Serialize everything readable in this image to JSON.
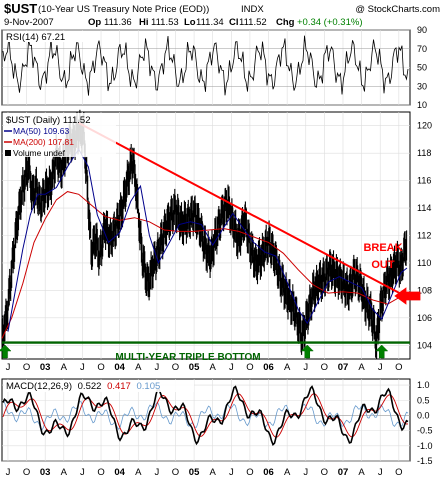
{
  "header": {
    "symbol": "$UST",
    "name": "(10-Year US Treasury Note Price (EOD))",
    "exchange": "INDX",
    "watermark": "@ StockCharts.com",
    "date": "9-Nov-2007",
    "op_label": "Op",
    "op": "111.36",
    "hi_label": "Hi",
    "hi": "111.53",
    "lo_label": "Lo",
    "lo": "111.34",
    "cl_label": "Cl",
    "cl": "111.52",
    "chg_label": "Chg",
    "chg": "+0.34 (+0.31%)",
    "chg_color": "#008000"
  },
  "chart_data": [
    {
      "type": "line",
      "panel": "rsi",
      "label": "RSI(14) 67.21",
      "ylim": [
        10,
        90
      ],
      "yticks": [
        10,
        30,
        50,
        70,
        90
      ],
      "reference_lines": [
        30,
        70
      ],
      "color": "#000000"
    },
    {
      "type": "line",
      "panel": "price",
      "title": "$UST (Daily) 111.52",
      "ylim": [
        103,
        121
      ],
      "yticks": [
        104,
        106,
        108,
        110,
        112,
        114,
        116,
        118,
        120
      ],
      "x_tick_labels": [
        "J",
        "O",
        "03",
        "A",
        "J",
        "O",
        "04",
        "A",
        "J",
        "O",
        "05",
        "A",
        "J",
        "O",
        "06",
        "A",
        "J",
        "O",
        "07",
        "A",
        "J",
        "O"
      ],
      "series": [
        {
          "name": "MA(50) 109.63",
          "color": "#00008b"
        },
        {
          "name": "MA(200) 107.81",
          "color": "#cc0000"
        },
        {
          "name": "Volume undef",
          "color": "#000000"
        }
      ],
      "price_points": [
        [
          2002.42,
          104.3
        ],
        [
          2002.5,
          106.8
        ],
        [
          2002.55,
          109.5
        ],
        [
          2002.62,
          112.8
        ],
        [
          2002.67,
          114.6
        ],
        [
          2002.72,
          115.9
        ],
        [
          2002.78,
          117.1
        ],
        [
          2002.83,
          114.8
        ],
        [
          2002.88,
          115.6
        ],
        [
          2002.93,
          114.2
        ],
        [
          2003.0,
          115.2
        ],
        [
          2003.08,
          115.7
        ],
        [
          2003.15,
          117.8
        ],
        [
          2003.22,
          116.8
        ],
        [
          2003.3,
          118.6
        ],
        [
          2003.38,
          118.9
        ],
        [
          2003.45,
          119.6
        ],
        [
          2003.52,
          119.4
        ],
        [
          2003.58,
          114.2
        ],
        [
          2003.62,
          110.8
        ],
        [
          2003.68,
          111.8
        ],
        [
          2003.73,
          110.4
        ],
        [
          2003.8,
          112.7
        ],
        [
          2003.88,
          111.6
        ],
        [
          2003.95,
          112.6
        ],
        [
          2004.03,
          113.9
        ],
        [
          2004.12,
          116.4
        ],
        [
          2004.18,
          117.6
        ],
        [
          2004.24,
          114.4
        ],
        [
          2004.3,
          110.6
        ],
        [
          2004.38,
          108.4
        ],
        [
          2004.45,
          109.8
        ],
        [
          2004.52,
          110.8
        ],
        [
          2004.6,
          112.3
        ],
        [
          2004.68,
          113.3
        ],
        [
          2004.75,
          113.9
        ],
        [
          2004.83,
          112.8
        ],
        [
          2004.92,
          113.1
        ],
        [
          2005.0,
          113.6
        ],
        [
          2005.08,
          112.6
        ],
        [
          2005.15,
          111.1
        ],
        [
          2005.22,
          110.4
        ],
        [
          2005.3,
          112.1
        ],
        [
          2005.38,
          113.6
        ],
        [
          2005.45,
          114.4
        ],
        [
          2005.52,
          112.9
        ],
        [
          2005.6,
          111.6
        ],
        [
          2005.68,
          113.2
        ],
        [
          2005.75,
          111.3
        ],
        [
          2005.83,
          109.9
        ],
        [
          2005.92,
          110.6
        ],
        [
          2006.0,
          111.6
        ],
        [
          2006.08,
          110.5
        ],
        [
          2006.15,
          109.0
        ],
        [
          2006.25,
          107.6
        ],
        [
          2006.35,
          106.6
        ],
        [
          2006.45,
          104.6
        ],
        [
          2006.52,
          106.1
        ],
        [
          2006.6,
          107.9
        ],
        [
          2006.68,
          108.6
        ],
        [
          2006.75,
          108.9
        ],
        [
          2006.83,
          109.6
        ],
        [
          2006.92,
          109.0
        ],
        [
          2007.0,
          108.6
        ],
        [
          2007.08,
          107.9
        ],
        [
          2007.15,
          109.2
        ],
        [
          2007.22,
          108.6
        ],
        [
          2007.3,
          107.1
        ],
        [
          2007.38,
          106.4
        ],
        [
          2007.45,
          104.3
        ],
        [
          2007.5,
          106.6
        ],
        [
          2007.58,
          108.6
        ],
        [
          2007.65,
          109.1
        ],
        [
          2007.72,
          110.1
        ],
        [
          2007.78,
          109.6
        ],
        [
          2007.82,
          110.7
        ],
        [
          2007.86,
          111.52
        ]
      ],
      "ma50_points": [
        [
          2002.5,
          105.0
        ],
        [
          2002.6,
          108.0
        ],
        [
          2002.7,
          111.0
        ],
        [
          2002.8,
          113.5
        ],
        [
          2002.9,
          115.0
        ],
        [
          2003.0,
          115.0
        ],
        [
          2003.15,
          115.5
        ],
        [
          2003.3,
          117.0
        ],
        [
          2003.45,
          118.3
        ],
        [
          2003.58,
          117.0
        ],
        [
          2003.7,
          113.5
        ],
        [
          2003.85,
          111.5
        ],
        [
          2004.0,
          112.2
        ],
        [
          2004.15,
          114.5
        ],
        [
          2004.28,
          115.6
        ],
        [
          2004.4,
          112.0
        ],
        [
          2004.52,
          110.0
        ],
        [
          2004.65,
          111.3
        ],
        [
          2004.8,
          112.8
        ],
        [
          2004.95,
          113.0
        ],
        [
          2005.1,
          112.8
        ],
        [
          2005.25,
          111.3
        ],
        [
          2005.4,
          112.6
        ],
        [
          2005.52,
          113.6
        ],
        [
          2005.65,
          112.6
        ],
        [
          2005.8,
          111.5
        ],
        [
          2005.95,
          110.8
        ],
        [
          2006.1,
          110.5
        ],
        [
          2006.25,
          108.6
        ],
        [
          2006.4,
          106.6
        ],
        [
          2006.52,
          105.6
        ],
        [
          2006.65,
          107.0
        ],
        [
          2006.8,
          108.6
        ],
        [
          2006.95,
          109.0
        ],
        [
          2007.1,
          108.6
        ],
        [
          2007.25,
          108.2
        ],
        [
          2007.4,
          106.6
        ],
        [
          2007.52,
          105.9
        ],
        [
          2007.65,
          107.6
        ],
        [
          2007.78,
          109.3
        ],
        [
          2007.86,
          109.63
        ]
      ],
      "ma200_points": [
        [
          2002.42,
          104.5
        ],
        [
          2002.55,
          106.0
        ],
        [
          2002.7,
          108.5
        ],
        [
          2002.85,
          111.5
        ],
        [
          2003.0,
          113.2
        ],
        [
          2003.15,
          114.6
        ],
        [
          2003.3,
          115.2
        ],
        [
          2003.45,
          115.0
        ],
        [
          2003.6,
          114.3
        ],
        [
          2003.8,
          113.4
        ],
        [
          2004.0,
          113.1
        ],
        [
          2004.2,
          113.3
        ],
        [
          2004.4,
          113.0
        ],
        [
          2004.6,
          112.4
        ],
        [
          2004.8,
          112.3
        ],
        [
          2005.0,
          112.3
        ],
        [
          2005.2,
          112.4
        ],
        [
          2005.4,
          112.5
        ],
        [
          2005.6,
          112.3
        ],
        [
          2005.8,
          111.9
        ],
        [
          2006.0,
          111.5
        ],
        [
          2006.2,
          110.7
        ],
        [
          2006.4,
          109.5
        ],
        [
          2006.6,
          108.4
        ],
        [
          2006.8,
          107.8
        ],
        [
          2007.0,
          107.9
        ],
        [
          2007.2,
          107.8
        ],
        [
          2007.4,
          107.3
        ],
        [
          2007.6,
          107.0
        ],
        [
          2007.86,
          107.81
        ]
      ],
      "annotations": {
        "trendline": {
          "start": [
            2003.45,
            120.2
          ],
          "end": [
            2007.98,
            107.4
          ],
          "color": "#ff0000"
        },
        "support": {
          "value": 104.2,
          "color": "#006400",
          "label": "MULTI-YEAR TRIPLE BOTTOM"
        },
        "breakout_label_1": "BREAK",
        "breakout_label_2": "OUT",
        "bottom_arrows_x": [
          2002.42,
          2006.48,
          2007.48
        ]
      }
    },
    {
      "type": "line",
      "panel": "macd",
      "label_prefix": "MACD(12,26,9)",
      "macd_value": "0.522",
      "signal_value": "0.417",
      "hist_value": "0.105",
      "ylim": [
        -1.5,
        1.2
      ],
      "yticks": [
        "1.0",
        "0.5",
        "0.0",
        "-0.5",
        "-1.0",
        "-1.5"
      ],
      "colors": {
        "macd": "#000000",
        "signal": "#cc0000",
        "hist": "#6699cc"
      }
    }
  ]
}
